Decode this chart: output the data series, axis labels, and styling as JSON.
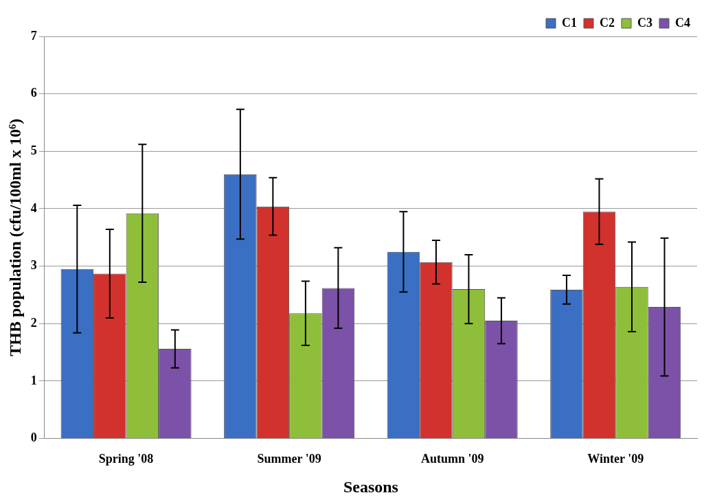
{
  "chart_data": {
    "type": "bar",
    "xlabel": "Seasons",
    "ylabel": "THB population (cfu/100ml x 10⁶)",
    "categories": [
      "Spring '08",
      "Summer '09",
      "Autumn '09",
      "Winter '09"
    ],
    "series": [
      {
        "name": "C1",
        "color": "#3a6fc4",
        "values": [
          2.95,
          4.6,
          3.25,
          2.59
        ],
        "errors": [
          1.11,
          1.13,
          0.7,
          0.25
        ]
      },
      {
        "name": "C2",
        "color": "#d2322d",
        "values": [
          2.87,
          4.04,
          3.07,
          3.95
        ],
        "errors": [
          0.77,
          0.5,
          0.38,
          0.57
        ]
      },
      {
        "name": "C3",
        "color": "#8fbf3a",
        "values": [
          3.92,
          2.18,
          2.6,
          2.64
        ],
        "errors": [
          1.2,
          0.56,
          0.6,
          0.78
        ]
      },
      {
        "name": "C4",
        "color": "#7b52a8",
        "values": [
          1.56,
          2.62,
          2.05,
          2.29
        ],
        "errors": [
          0.33,
          0.7,
          0.4,
          1.2
        ]
      }
    ],
    "ylim": [
      0,
      7
    ],
    "yticks": [
      0,
      1,
      2,
      3,
      4,
      5,
      6,
      7
    ],
    "grid": "y",
    "legend": "top right"
  }
}
